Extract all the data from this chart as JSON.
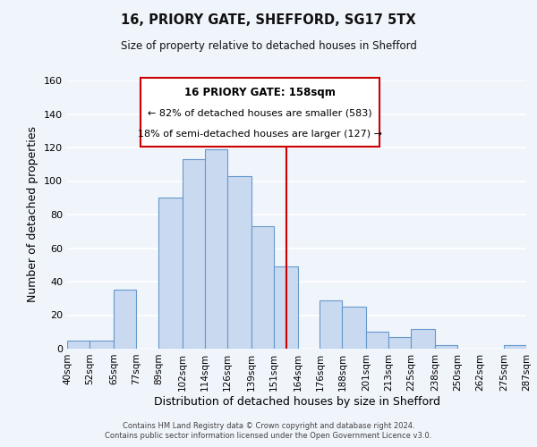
{
  "title": "16, PRIORY GATE, SHEFFORD, SG17 5TX",
  "subtitle": "Size of property relative to detached houses in Shefford",
  "xlabel": "Distribution of detached houses by size in Shefford",
  "ylabel": "Number of detached properties",
  "bar_left_edges": [
    40,
    52,
    65,
    77,
    89,
    102,
    114,
    126,
    139,
    151,
    164,
    176,
    188,
    201,
    213,
    225,
    238,
    250,
    262,
    275
  ],
  "bar_heights": [
    5,
    5,
    35,
    0,
    90,
    113,
    119,
    103,
    73,
    49,
    0,
    29,
    25,
    10,
    7,
    12,
    2,
    0,
    0,
    2
  ],
  "bar_color": "#c9d9f0",
  "bar_edge_color": "#6699cc",
  "vline_x": 158,
  "vline_color": "#cc0000",
  "ylim": [
    0,
    160
  ],
  "yticks": [
    0,
    20,
    40,
    60,
    80,
    100,
    120,
    140,
    160
  ],
  "tick_positions": [
    40,
    52,
    65,
    77,
    89,
    102,
    114,
    126,
    139,
    151,
    164,
    176,
    188,
    201,
    213,
    225,
    238,
    250,
    262,
    275,
    287
  ],
  "tick_labels": [
    "40sqm",
    "52sqm",
    "65sqm",
    "77sqm",
    "89sqm",
    "102sqm",
    "114sqm",
    "126sqm",
    "139sqm",
    "151sqm",
    "164sqm",
    "176sqm",
    "188sqm",
    "201sqm",
    "213sqm",
    "225sqm",
    "238sqm",
    "250sqm",
    "262sqm",
    "275sqm",
    "287sqm"
  ],
  "annotation_box_title": "16 PRIORY GATE: 158sqm",
  "annotation_line1": "← 82% of detached houses are smaller (583)",
  "annotation_line2": "18% of semi-detached houses are larger (127) →",
  "footnote1": "Contains HM Land Registry data © Crown copyright and database right 2024.",
  "footnote2": "Contains public sector information licensed under the Open Government Licence v3.0.",
  "background_color": "#f0f4fb",
  "grid_color": "#ffffff"
}
